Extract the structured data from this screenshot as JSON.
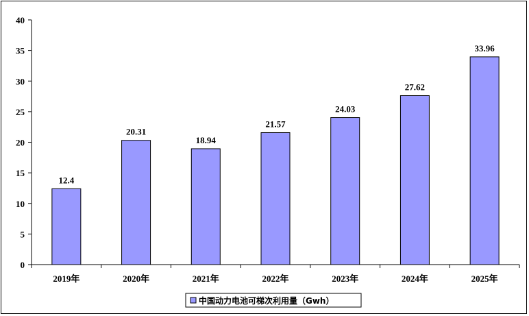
{
  "chart_data": {
    "type": "bar",
    "categories": [
      "2019年",
      "2020年",
      "2021年",
      "2022年",
      "2023年",
      "2024年",
      "2025年"
    ],
    "series": [
      {
        "name": "中国动力电池可梯次利用量（Gwh）",
        "values": [
          12.4,
          20.31,
          18.94,
          21.57,
          24.03,
          27.62,
          33.96
        ],
        "labels": [
          "12.4",
          "20.31",
          "18.94",
          "21.57",
          "24.03",
          "27.62",
          "33.96"
        ],
        "color": "#9999ff"
      }
    ],
    "yticks": [
      0,
      5,
      10,
      15,
      20,
      25,
      30,
      35,
      40
    ],
    "ylim": [
      0,
      40
    ],
    "grid": false,
    "legend": "bottom-center",
    "bar_border_color": "#000000"
  }
}
